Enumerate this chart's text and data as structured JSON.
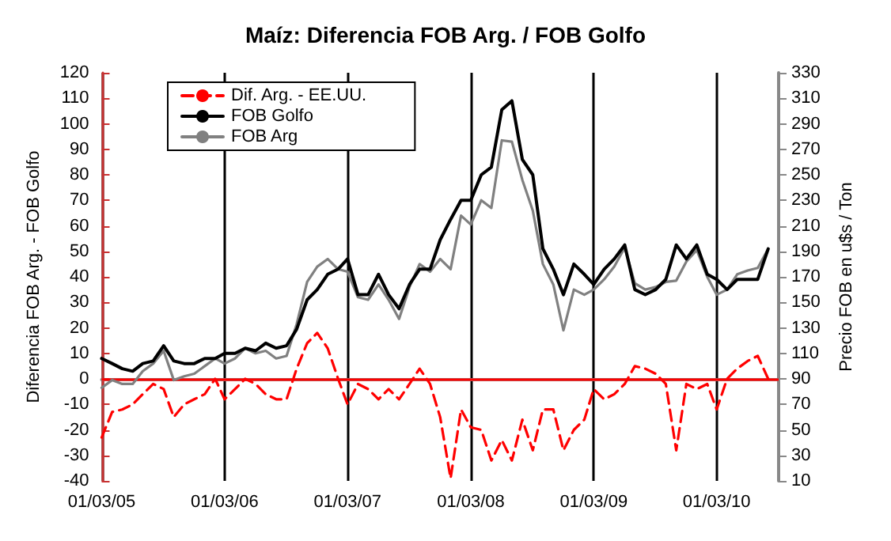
{
  "chart_data": {
    "type": "line",
    "title": "Maíz: Diferencia FOB Arg. / FOB Golfo",
    "ylabel": "Diferencia FOB Arg. - FOB Golfo",
    "y2label": "Precio FOB en u$s / Ton",
    "x": [
      "2005-03-01",
      "2005-04-01",
      "2005-05-01",
      "2005-06-01",
      "2005-07-01",
      "2005-08-01",
      "2005-09-01",
      "2005-10-01",
      "2005-11-01",
      "2005-12-01",
      "2006-01-01",
      "2006-02-01",
      "2006-03-01",
      "2006-04-01",
      "2006-05-01",
      "2006-06-01",
      "2006-07-01",
      "2006-08-01",
      "2006-09-01",
      "2006-10-01",
      "2006-11-01",
      "2006-12-01",
      "2007-01-01",
      "2007-02-01",
      "2007-03-01",
      "2007-04-01",
      "2007-05-01",
      "2007-06-01",
      "2007-07-01",
      "2007-08-01",
      "2007-09-01",
      "2007-10-01",
      "2007-11-01",
      "2007-12-01",
      "2008-01-01",
      "2008-02-01",
      "2008-03-01",
      "2008-04-01",
      "2008-05-01",
      "2008-06-01",
      "2008-07-01",
      "2008-08-01",
      "2008-09-01",
      "2008-10-01",
      "2008-11-01",
      "2008-12-01",
      "2009-01-01",
      "2009-02-01",
      "2009-03-01",
      "2009-04-01",
      "2009-05-01",
      "2009-06-01",
      "2009-07-01",
      "2009-08-01",
      "2009-09-01",
      "2009-10-01",
      "2009-11-01",
      "2009-12-01",
      "2010-01-01",
      "2010-02-01",
      "2010-03-01",
      "2010-04-01",
      "2010-05-01",
      "2010-06-01",
      "2010-07-01",
      "2010-08-01"
    ],
    "series": [
      {
        "name": "Dif. Arg. - EE.UU.",
        "color": "#ff0000",
        "line_style": "dashed",
        "values": [
          -23,
          -13,
          -12,
          -10,
          -6,
          -2,
          -4,
          -15,
          -10,
          -8,
          -6,
          0,
          -8,
          -4,
          0,
          -2,
          -6,
          -8,
          -8,
          4,
          14,
          18,
          12,
          0,
          -10,
          -2,
          -4,
          -8,
          -4,
          -8,
          -2,
          4,
          -2,
          -15,
          -39,
          -12,
          -19,
          -20,
          -32,
          -24,
          -32,
          -16,
          -28,
          -12,
          -12,
          -28,
          -20,
          -16,
          -4,
          -8,
          -6,
          -2,
          5,
          4,
          2,
          -2,
          -28,
          -2,
          -4,
          -2,
          -12,
          0,
          4,
          7,
          9,
          0
        ]
      },
      {
        "name": "FOB Golfo",
        "color": "#000000",
        "axis": "y2",
        "values": [
          106,
          102,
          98,
          96,
          102,
          104,
          116,
          104,
          102,
          102,
          106,
          106,
          110,
          110,
          114,
          112,
          118,
          114,
          116,
          129,
          152,
          160,
          172,
          176,
          184,
          156,
          156,
          172,
          156,
          145,
          164,
          176,
          176,
          199,
          215,
          230,
          230,
          250,
          256,
          301,
          308,
          262,
          250,
          192,
          176,
          156,
          180,
          172,
          164,
          176,
          184,
          195,
          160,
          156,
          160,
          168,
          195,
          184,
          195,
          172,
          168,
          160,
          168,
          168,
          168,
          192
        ]
      },
      {
        "name": "FOB Arg",
        "color": "#808080",
        "axis": "y2",
        "values": [
          83,
          89,
          86,
          86,
          96,
          102,
          112,
          89,
          92,
          94,
          100,
          106,
          102,
          106,
          114,
          110,
          112,
          106,
          108,
          133,
          166,
          178,
          184,
          176,
          174,
          154,
          152,
          164,
          152,
          137,
          162,
          180,
          174,
          184,
          176,
          218,
          211,
          230,
          224,
          277,
          276,
          246,
          222,
          180,
          164,
          128,
          160,
          156,
          160,
          168,
          178,
          193,
          165,
          160,
          162,
          166,
          167,
          182,
          191,
          170,
          156,
          160,
          172,
          175,
          177,
          192
        ]
      }
    ],
    "xlim": [
      "2005-03-01",
      "2010-09-01"
    ],
    "xticks": [
      {
        "value": "2005-03-01",
        "label": "01/03/05"
      },
      {
        "value": "2006-03-01",
        "label": "01/03/06"
      },
      {
        "value": "2007-03-01",
        "label": "01/03/07"
      },
      {
        "value": "2008-03-01",
        "label": "01/03/08"
      },
      {
        "value": "2009-03-01",
        "label": "01/03/09"
      },
      {
        "value": "2010-03-01",
        "label": "01/03/10"
      }
    ],
    "ylim": [
      -40,
      120
    ],
    "yticks": [
      -40,
      -30,
      -20,
      -10,
      0,
      10,
      20,
      30,
      40,
      50,
      60,
      70,
      80,
      90,
      100,
      110,
      120
    ],
    "y2lim": [
      10,
      330
    ],
    "y2ticks": [
      10,
      30,
      50,
      70,
      90,
      110,
      130,
      150,
      170,
      190,
      210,
      230,
      250,
      270,
      290,
      310,
      330
    ],
    "ref_lines": [
      {
        "axis": "y",
        "value": 0,
        "color": "#ff0000"
      }
    ],
    "grid": "x",
    "legend": "top left",
    "marker": "none",
    "line_style": "solid"
  }
}
